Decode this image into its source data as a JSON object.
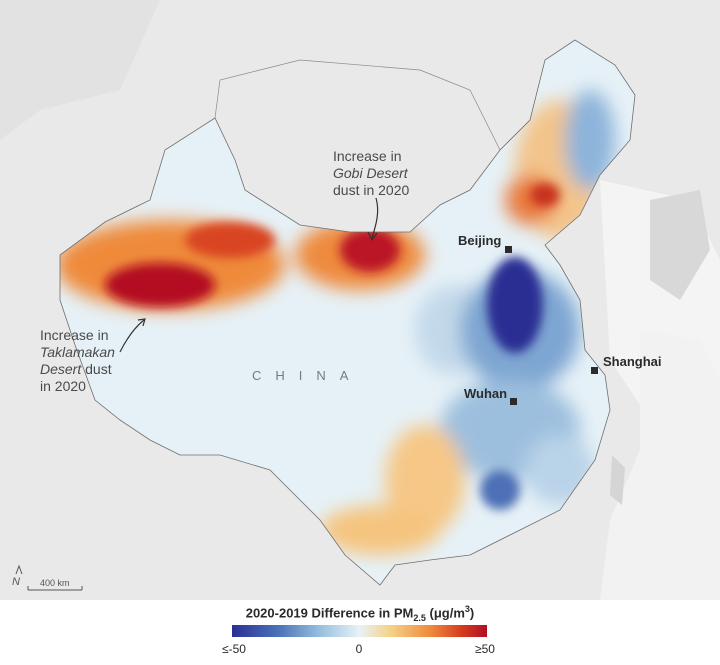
{
  "annotations": {
    "gobi": {
      "line1": "Increase in",
      "line2_italic": "Gobi Desert",
      "line3": "dust in 2020"
    },
    "taklamakan": {
      "line1": "Increase in",
      "line2_italic": "Taklamakan",
      "line3_italic": "Desert",
      "line3_rest": " dust",
      "line4": "in 2020"
    }
  },
  "cities": [
    {
      "name": "Beijing"
    },
    {
      "name": "Shanghai"
    },
    {
      "name": "Wuhan"
    }
  ],
  "country_label": "CHINA",
  "north_label": "N",
  "scale_label": "400 km",
  "legend": {
    "title_main": "2020-2019 Difference in PM",
    "title_sub": "2.5",
    "title_units": "(μg/m",
    "title_units_sup": "3",
    "title_units_close": ")",
    "ticks": [
      {
        "label": "≤-50",
        "value": -50
      },
      {
        "label": "0",
        "value": 0
      },
      {
        "label": "≥50",
        "value": 50
      }
    ],
    "colors": [
      "#2b2f93",
      "#4a72b8",
      "#95bddd",
      "#e8f2f7",
      "#f6d289",
      "#ee8a3c",
      "#d63b1f",
      "#b00f22"
    ]
  }
}
